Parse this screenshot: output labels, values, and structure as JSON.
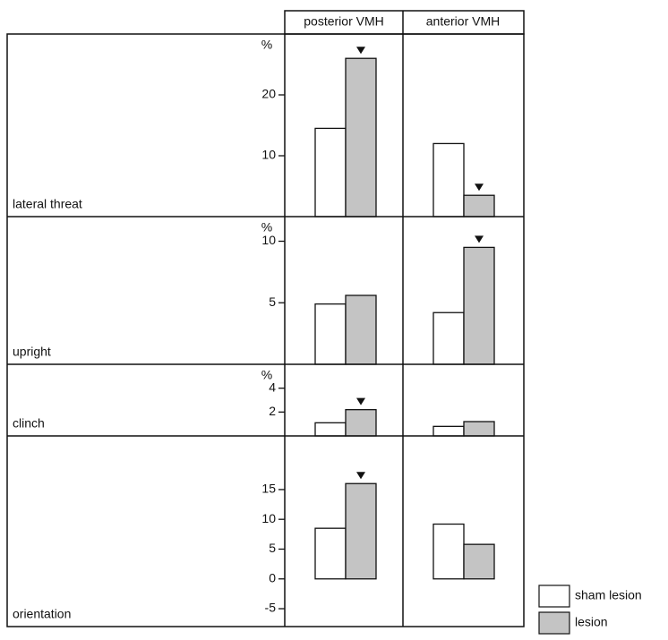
{
  "chart_data": {
    "type": "bar",
    "columns": [
      "posterior VMH",
      "anterior VMH"
    ],
    "series": [
      {
        "name": "sham lesion",
        "color": "#ffffff"
      },
      {
        "name": "lesion",
        "color": "#c4c4c4"
      }
    ],
    "panels": [
      {
        "label": "lateral threat",
        "unit": "%",
        "ylim": [
          0,
          30
        ],
        "yticks": [
          10,
          20
        ],
        "values": [
          [
            14.5,
            26
          ],
          [
            12,
            3.5
          ]
        ],
        "significant": [
          [
            false,
            true
          ],
          [
            false,
            true
          ]
        ]
      },
      {
        "label": "upright",
        "unit": "%",
        "ylim": [
          0,
          12
        ],
        "yticks": [
          5,
          10
        ],
        "values": [
          [
            4.9,
            5.6
          ],
          [
            4.2,
            9.5
          ]
        ],
        "significant": [
          [
            false,
            false
          ],
          [
            false,
            true
          ]
        ]
      },
      {
        "label": "clinch",
        "unit": "%",
        "ylim": [
          0,
          6
        ],
        "yticks": [
          2,
          4
        ],
        "values": [
          [
            1.1,
            2.2
          ],
          [
            0.8,
            1.2
          ]
        ],
        "significant": [
          [
            false,
            true
          ],
          [
            false,
            false
          ]
        ]
      },
      {
        "label": "orientation",
        "ylim": [
          -8,
          24
        ],
        "yticks": [
          -5,
          0,
          5,
          10,
          15
        ],
        "values": [
          [
            8.5,
            16
          ],
          [
            9.2,
            5.8
          ]
        ],
        "significant": [
          [
            false,
            true
          ],
          [
            false,
            false
          ]
        ]
      }
    ]
  }
}
